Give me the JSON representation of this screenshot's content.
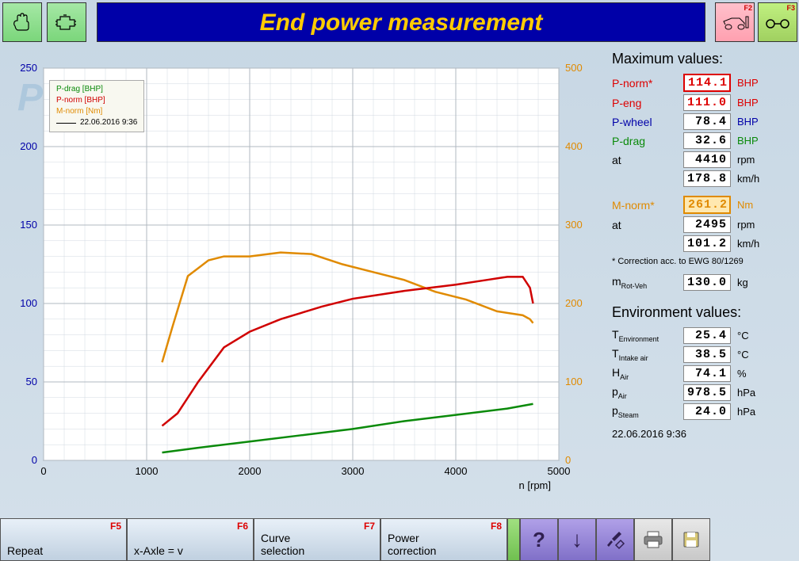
{
  "title": "End power measurement",
  "toolbar": {
    "f2_label": "F2",
    "f3_label": "F3"
  },
  "chart": {
    "type": "line",
    "x_label": "n [rpm]",
    "series": [
      {
        "name": "P-drag [BHP]",
        "color": "#0a8a0a"
      },
      {
        "name": "P-norm [BHP]",
        "color": "#d00000"
      },
      {
        "name": "M-norm [Nm]",
        "color": "#e08a00"
      }
    ],
    "legend_timestamp": "22.06.2016 9:36",
    "y_left": {
      "min": 0,
      "max": 250,
      "step": 50,
      "color": "#0000a8"
    },
    "y_right": {
      "min": 0,
      "max": 500,
      "step": 100,
      "color": "#e08a00"
    },
    "x": {
      "min": 0,
      "max": 5000,
      "step": 1000
    },
    "grid_color": "#d0d8e0",
    "background": "#ffffff",
    "pdrag": [
      [
        1150,
        5
      ],
      [
        1500,
        8
      ],
      [
        2000,
        12
      ],
      [
        2500,
        16
      ],
      [
        3000,
        20
      ],
      [
        3500,
        25
      ],
      [
        4000,
        29
      ],
      [
        4500,
        33
      ],
      [
        4750,
        36
      ]
    ],
    "pnorm": [
      [
        1150,
        22
      ],
      [
        1300,
        30
      ],
      [
        1500,
        50
      ],
      [
        1750,
        72
      ],
      [
        2000,
        82
      ],
      [
        2300,
        90
      ],
      [
        2700,
        98
      ],
      [
        3000,
        103
      ],
      [
        3500,
        108
      ],
      [
        4000,
        112
      ],
      [
        4300,
        115
      ],
      [
        4500,
        117
      ],
      [
        4650,
        117
      ],
      [
        4720,
        110
      ],
      [
        4750,
        100
      ]
    ],
    "mnorm": [
      [
        1150,
        125
      ],
      [
        1250,
        170
      ],
      [
        1400,
        235
      ],
      [
        1600,
        255
      ],
      [
        1750,
        260
      ],
      [
        2000,
        260
      ],
      [
        2300,
        265
      ],
      [
        2600,
        263
      ],
      [
        2900,
        250
      ],
      [
        3200,
        240
      ],
      [
        3500,
        230
      ],
      [
        3800,
        215
      ],
      [
        4100,
        205
      ],
      [
        4400,
        190
      ],
      [
        4650,
        185
      ],
      [
        4720,
        180
      ],
      [
        4750,
        175
      ]
    ]
  },
  "max": {
    "heading": "Maximum values:",
    "rows": [
      {
        "label": "P-norm*",
        "value": "114.1",
        "unit": "BHP",
        "label_color": "#d00",
        "value_color": "#d00",
        "border": "red"
      },
      {
        "label": "P-eng",
        "value": "111.0",
        "unit": "BHP",
        "label_color": "#d00",
        "value_color": "#d00"
      },
      {
        "label": "P-wheel",
        "value": "78.4",
        "unit": "BHP",
        "label_color": "#0000a8"
      },
      {
        "label": "P-drag",
        "value": "32.6",
        "unit": "BHP",
        "label_color": "#0a8a0a"
      },
      {
        "label": "at",
        "value": "4410",
        "unit": "rpm"
      },
      {
        "label": "",
        "value": "178.8",
        "unit": "km/h"
      }
    ],
    "mrows": [
      {
        "label": "M-norm*",
        "value": "261.2",
        "unit": "Nm",
        "label_color": "#e08a00",
        "value_color": "#e08a00",
        "border": "orange"
      },
      {
        "label": "at",
        "value": "2495",
        "unit": "rpm"
      },
      {
        "label": "",
        "value": "101.2",
        "unit": "km/h"
      }
    ],
    "note": "* Correction acc. to EWG 80/1269",
    "mrot": {
      "label": "m",
      "sub": "Rot-Veh",
      "value": "130.0",
      "unit": "kg"
    }
  },
  "env": {
    "heading": "Environment values:",
    "rows": [
      {
        "label": "T",
        "sub": "Environment",
        "value": "25.4",
        "unit": "°C"
      },
      {
        "label": "T",
        "sub": "Intake air",
        "value": "38.5",
        "unit": "°C"
      },
      {
        "label": "H",
        "sub": "Air",
        "value": "74.1",
        "unit": "%"
      },
      {
        "label": "p",
        "sub": "Air",
        "value": "978.5",
        "unit": "hPa"
      },
      {
        "label": "p",
        "sub": "Steam",
        "value": "24.0",
        "unit": "hPa"
      }
    ]
  },
  "timestamp": "22.06.2016  9:36",
  "bottom": {
    "f5": {
      "key": "F5",
      "label": "Repeat"
    },
    "f6": {
      "key": "F6",
      "label": "x-Axle = v"
    },
    "f7": {
      "key": "F7",
      "label": "Curve\nselection"
    },
    "f8": {
      "key": "F8",
      "label": "Power\ncorrection"
    }
  },
  "watermark": "PKE"
}
